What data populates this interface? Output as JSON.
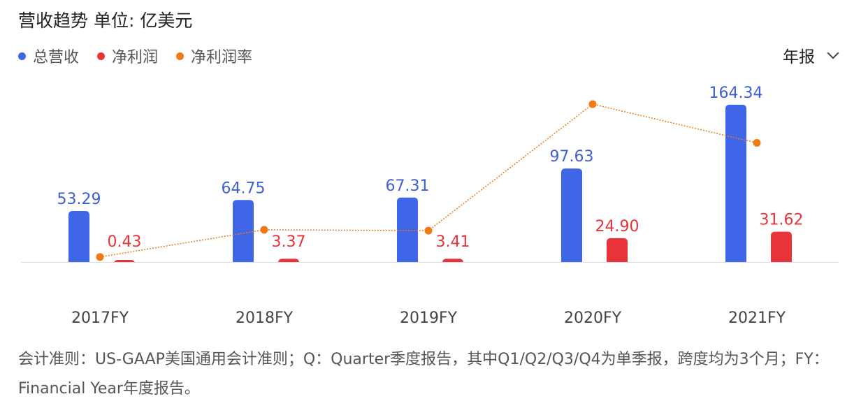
{
  "header": {
    "title": "营收趋势  单位: 亿美元",
    "period_selector": "年报",
    "period_icon": "chevron-down-icon"
  },
  "colors": {
    "revenue": "#3f66e6",
    "net_profit": "#e8333a",
    "net_margin": "#f07a14"
  },
  "chart_data": {
    "type": "bar",
    "title": "营收趋势  单位: 亿美元",
    "categories": [
      "2017FY",
      "2018FY",
      "2019FY",
      "2020FY",
      "2021FY"
    ],
    "series": [
      {
        "name": "总营收",
        "type": "bar",
        "values": [
          53.29,
          64.75,
          67.31,
          97.63,
          164.34
        ],
        "labels": [
          "53.29",
          "64.75",
          "67.31",
          "97.63",
          "164.34"
        ]
      },
      {
        "name": "净利润",
        "type": "bar",
        "values": [
          0.43,
          3.37,
          3.41,
          24.9,
          31.62
        ],
        "labels": [
          "0.43",
          "3.37",
          "3.41",
          "24.90",
          "31.62"
        ]
      },
      {
        "name": "净利润率",
        "type": "line",
        "unit": "%",
        "values": [
          0.81,
          5.2,
          5.07,
          25.5,
          19.24
        ]
      }
    ],
    "grid": false,
    "legend": "top-left"
  },
  "footnote": "会计准则：US-GAAP美国通用会计准则；Q：Quarter季度报告，其中Q1/Q2/Q3/Q4为单季报，跨度均为3个月；FY：Financial Year年度报告。"
}
